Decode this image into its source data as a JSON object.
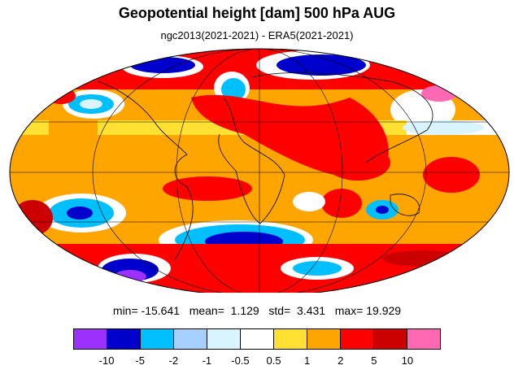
{
  "title": "Geopotential height [dam] 500 hPa AUG",
  "subtitle": "ngc2013(2021-2021) - ERA5(2021-2021)",
  "stats": {
    "min_label": "min=",
    "min": "-15.641",
    "mean_label": "mean=",
    "mean": "1.129",
    "std_label": "std=",
    "std": "3.431",
    "max_label": "max=",
    "max": "19.929"
  },
  "colorbar": {
    "colors": [
      "#9b30ff",
      "#0000cd",
      "#00bfff",
      "#a6d0ff",
      "#d9f3ff",
      "#ffffff",
      "#ffe033",
      "#ffa500",
      "#ff0000",
      "#cc0000",
      "#ff69b4"
    ],
    "labels": [
      "-10",
      "-5",
      "-2",
      "-1",
      "-0.5",
      "0.5",
      "1",
      "2",
      "5",
      "10"
    ]
  },
  "palette": {
    "orange": "#ffa500",
    "red": "#ff0000",
    "darkred": "#cc0000",
    "yellow": "#ffe033",
    "white": "#ffffff",
    "lightblue": "#d9f3ff",
    "paleblue": "#a6d0ff",
    "skyblue": "#00bfff",
    "blue": "#0000cd",
    "purple": "#9b30ff",
    "pink": "#ff69b4"
  }
}
